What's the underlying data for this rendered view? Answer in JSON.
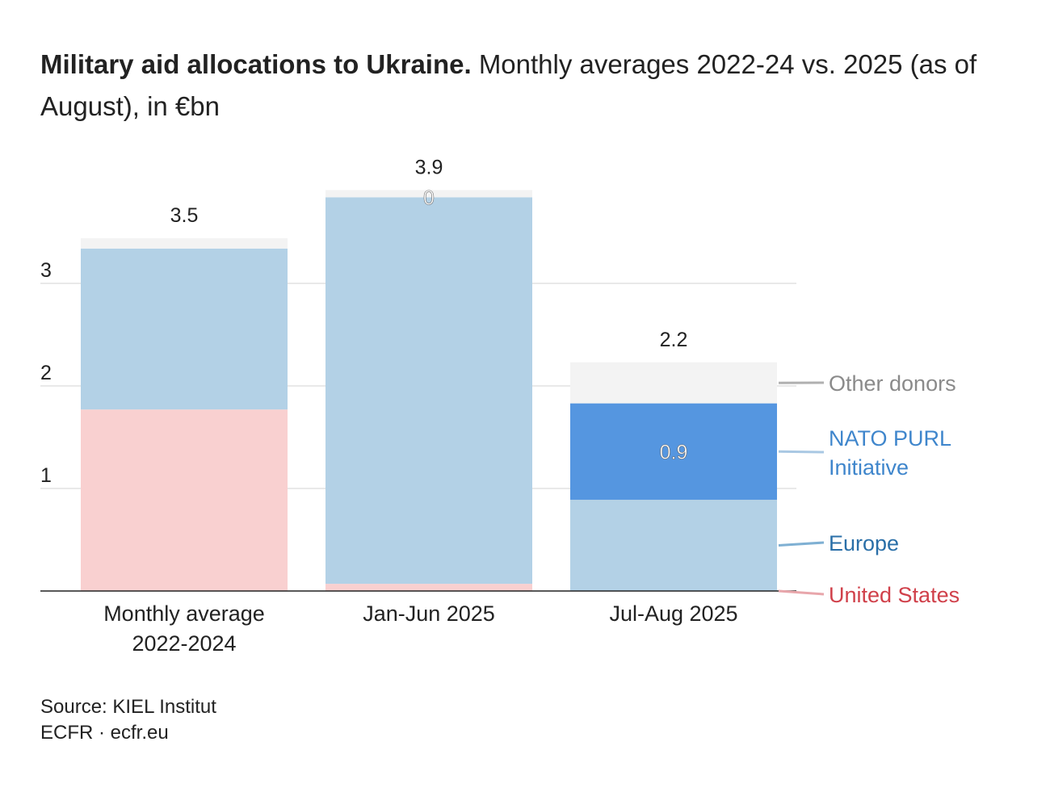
{
  "title": {
    "bold": "Military aid allocations to Ukraine.",
    "rest": "Monthly averages 2022-24 vs. 2025 (as of August), in €bn"
  },
  "chart_data": {
    "type": "bar",
    "stacked": true,
    "categories": [
      [
        "Monthly average",
        "2022-2024"
      ],
      [
        "Jan-Jun 2025"
      ],
      [
        "Jul-Aug 2025"
      ]
    ],
    "series": [
      {
        "name": "United States",
        "values": [
          1.77,
          0.07,
          0.0
        ],
        "color": "#f9d0d0",
        "label_color": "#d0404a",
        "leader_color": "#e8a6ab"
      },
      {
        "name": "Europe",
        "values": [
          1.57,
          3.77,
          0.89
        ],
        "color": "#b3d1e6",
        "label_color": "#2a6fa8",
        "leader_color": "#7fb0d3"
      },
      {
        "name": "NATO PURL Initiative",
        "values": [
          0.0,
          0.0,
          0.94
        ],
        "color": "#5596e0",
        "label_color": "#3f86cc",
        "leader_color": "#a9c8e3"
      },
      {
        "name": "Other donors",
        "values": [
          0.1,
          0.07,
          0.4
        ],
        "color": "#f3f3f3",
        "label_color": "#8a8a8a",
        "leader_color": "#b0b0b0"
      }
    ],
    "legend_labels": {
      "Other donors": [
        "Other donors"
      ],
      "NATO PURL Initiative": [
        "NATO PURL",
        "Initiative"
      ],
      "Europe": [
        "Europe"
      ],
      "United States": [
        "United States"
      ]
    },
    "totals": [
      "3.5",
      "3.9",
      "2.2"
    ],
    "inner_labels": [
      {
        "category": 1,
        "series": "NATO PURL Initiative",
        "text": "0"
      },
      {
        "category": 2,
        "series": "NATO PURL Initiative",
        "text": "0.9"
      }
    ],
    "y_ticks": [
      1,
      2,
      3
    ],
    "ylim": [
      0,
      4.3
    ],
    "gridlines": true,
    "legend_position": "right"
  },
  "footer": {
    "source": "Source: KIEL Institut",
    "credit": "ECFR · ecfr.eu"
  }
}
